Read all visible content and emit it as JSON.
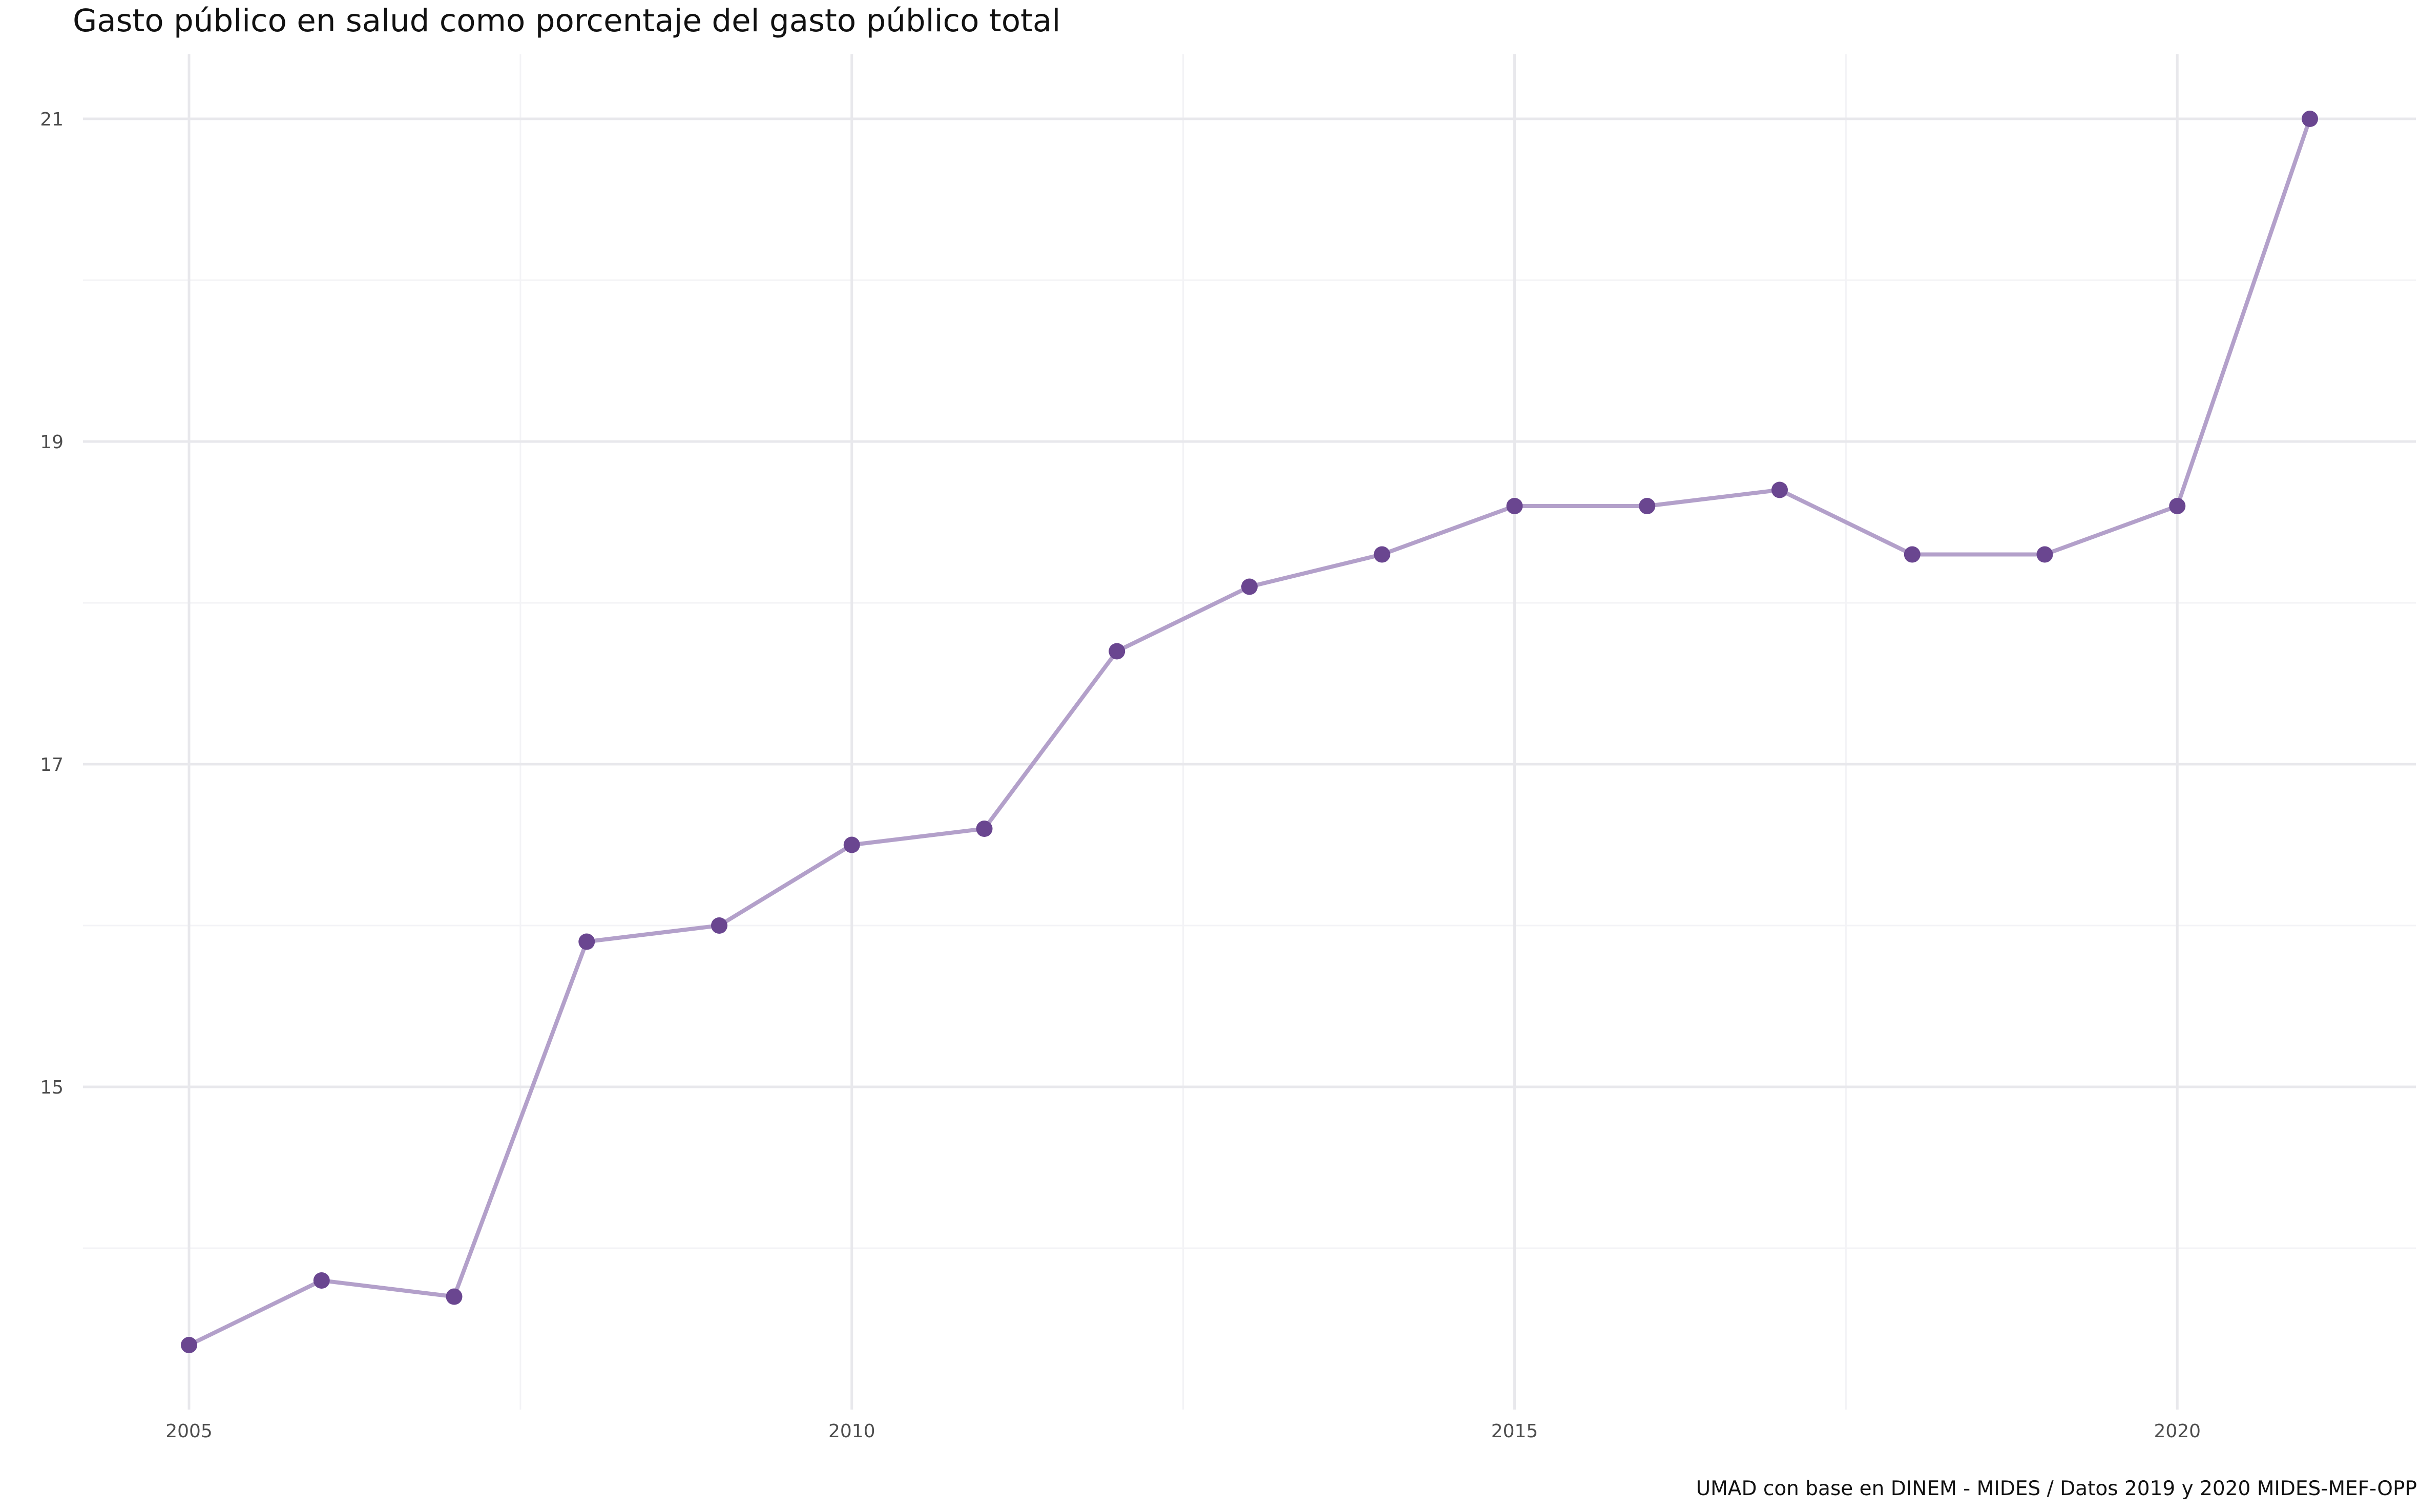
{
  "chart_data": {
    "type": "line",
    "title": "Gasto público en salud como porcentaje del gasto público total",
    "caption": "UMAD con base en DINEM - MIDES / Datos 2019 y 2020 MIDES-MEF-OPP",
    "xlabel": "",
    "ylabel": "",
    "x": [
      2005,
      2006,
      2007,
      2008,
      2009,
      2010,
      2011,
      2012,
      2013,
      2014,
      2015,
      2016,
      2017,
      2018,
      2019,
      2020,
      2021
    ],
    "values": [
      13.4,
      13.8,
      13.7,
      15.9,
      16.0,
      16.5,
      16.6,
      17.7,
      18.1,
      18.3,
      18.6,
      18.6,
      18.7,
      18.3,
      18.3,
      18.6,
      21.0
    ],
    "xlim": [
      2004.2,
      2021.8
    ],
    "ylim": [
      13.0,
      21.4
    ],
    "x_ticks": [
      2005,
      2010,
      2015,
      2020
    ],
    "x_tick_labels": [
      "2005",
      "2010",
      "2015",
      "2020"
    ],
    "y_ticks": [
      15,
      17,
      19,
      21
    ],
    "y_tick_labels": [
      "15",
      "17",
      "19",
      "21"
    ],
    "x_minor_ticks": [
      2007.5,
      2012.5,
      2017.5
    ],
    "y_minor_ticks": [
      14,
      16,
      18,
      20
    ],
    "grid": true,
    "legend": "none",
    "line_color": "#b3a0ca",
    "point_color": "#6a4690"
  }
}
